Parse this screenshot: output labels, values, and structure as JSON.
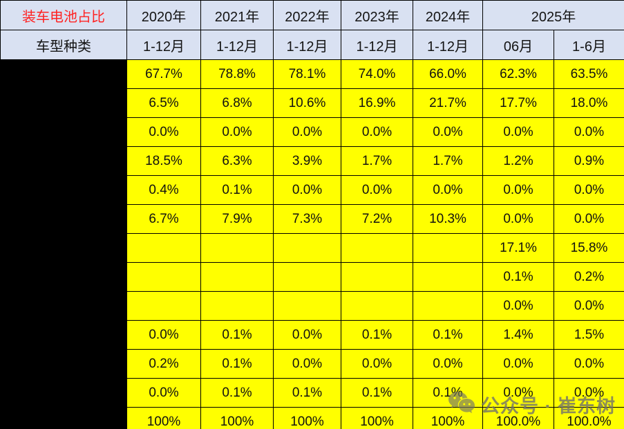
{
  "header": {
    "title": "装车电池占比",
    "row_header": "车型种类",
    "years": [
      "2020年",
      "2021年",
      "2022年",
      "2023年",
      "2024年",
      "2025年"
    ],
    "periods": [
      "1-12月",
      "1-12月",
      "1-12月",
      "1-12月",
      "1-12月",
      "06月",
      "1-6月"
    ]
  },
  "rows": [
    {
      "label_redacted": true,
      "values": [
        "67.7%",
        "78.8%",
        "78.1%",
        "74.0%",
        "66.0%",
        "62.3%",
        "63.5%"
      ]
    },
    {
      "label_redacted": true,
      "values": [
        "6.5%",
        "6.8%",
        "10.6%",
        "16.9%",
        "21.7%",
        "17.7%",
        "18.0%"
      ]
    },
    {
      "label_redacted": true,
      "values": [
        "0.0%",
        "0.0%",
        "0.0%",
        "0.0%",
        "0.0%",
        "0.0%",
        "0.0%"
      ]
    },
    {
      "label_redacted": true,
      "values": [
        "18.5%",
        "6.3%",
        "3.9%",
        "1.7%",
        "1.7%",
        "1.2%",
        "0.9%"
      ]
    },
    {
      "label_redacted": true,
      "values": [
        "0.4%",
        "0.1%",
        "0.0%",
        "0.0%",
        "0.0%",
        "0.0%",
        "0.0%"
      ]
    },
    {
      "label_redacted": true,
      "values": [
        "6.7%",
        "7.9%",
        "7.3%",
        "7.2%",
        "10.3%",
        "0.0%",
        "0.0%"
      ]
    },
    {
      "label_redacted": true,
      "values": [
        "",
        "",
        "",
        "",
        "",
        "17.1%",
        "15.8%"
      ]
    },
    {
      "label_redacted": true,
      "values": [
        "",
        "",
        "",
        "",
        "",
        "0.1%",
        "0.2%"
      ]
    },
    {
      "label_redacted": true,
      "values": [
        "",
        "",
        "",
        "",
        "",
        "0.0%",
        "0.0%"
      ]
    },
    {
      "label_redacted": true,
      "values": [
        "0.0%",
        "0.1%",
        "0.0%",
        "0.1%",
        "0.1%",
        "1.4%",
        "1.5%"
      ]
    },
    {
      "label_redacted": true,
      "values": [
        "0.2%",
        "0.1%",
        "0.0%",
        "0.0%",
        "0.0%",
        "0.0%",
        "0.0%"
      ]
    },
    {
      "label_redacted": true,
      "values": [
        "0.0%",
        "0.1%",
        "0.1%",
        "0.1%",
        "0.1%",
        "0.0%",
        "0.0%"
      ]
    },
    {
      "label_redacted": true,
      "values": [
        "100%",
        "100%",
        "100%",
        "100%",
        "100%",
        "100.0%",
        "100.0%"
      ]
    }
  ],
  "watermark": {
    "icon": "wechat-icon",
    "text": "公众号 · 崔东树"
  },
  "colors": {
    "header_bg": "#D9E1F2",
    "cell_bg": "#FFFF00",
    "title_red": "#FF2222",
    "redacted_black": "#000000",
    "watermark_gray": "#6E6E6E",
    "border": "#000000"
  },
  "chart_data": {
    "type": "table",
    "title": "装车电池占比",
    "row_dimension": "车型种类",
    "columns": [
      "2020年 1-12月",
      "2021年 1-12月",
      "2022年 1-12月",
      "2023年 1-12月",
      "2024年 1-12月",
      "2025年 06月",
      "2025年 1-6月"
    ],
    "unit": "percent",
    "note": "row category labels are blacked out in the source image",
    "values": [
      [
        67.7,
        78.8,
        78.1,
        74.0,
        66.0,
        62.3,
        63.5
      ],
      [
        6.5,
        6.8,
        10.6,
        16.9,
        21.7,
        17.7,
        18.0
      ],
      [
        0.0,
        0.0,
        0.0,
        0.0,
        0.0,
        0.0,
        0.0
      ],
      [
        18.5,
        6.3,
        3.9,
        1.7,
        1.7,
        1.2,
        0.9
      ],
      [
        0.4,
        0.1,
        0.0,
        0.0,
        0.0,
        0.0,
        0.0
      ],
      [
        6.7,
        7.9,
        7.3,
        7.2,
        10.3,
        0.0,
        0.0
      ],
      [
        null,
        null,
        null,
        null,
        null,
        17.1,
        15.8
      ],
      [
        null,
        null,
        null,
        null,
        null,
        0.1,
        0.2
      ],
      [
        null,
        null,
        null,
        null,
        null,
        0.0,
        0.0
      ],
      [
        0.0,
        0.1,
        0.0,
        0.1,
        0.1,
        1.4,
        1.5
      ],
      [
        0.2,
        0.1,
        0.0,
        0.0,
        0.0,
        0.0,
        0.0
      ],
      [
        0.0,
        0.1,
        0.1,
        0.1,
        0.1,
        0.0,
        0.0
      ],
      [
        100,
        100,
        100,
        100,
        100,
        100.0,
        100.0
      ]
    ]
  }
}
